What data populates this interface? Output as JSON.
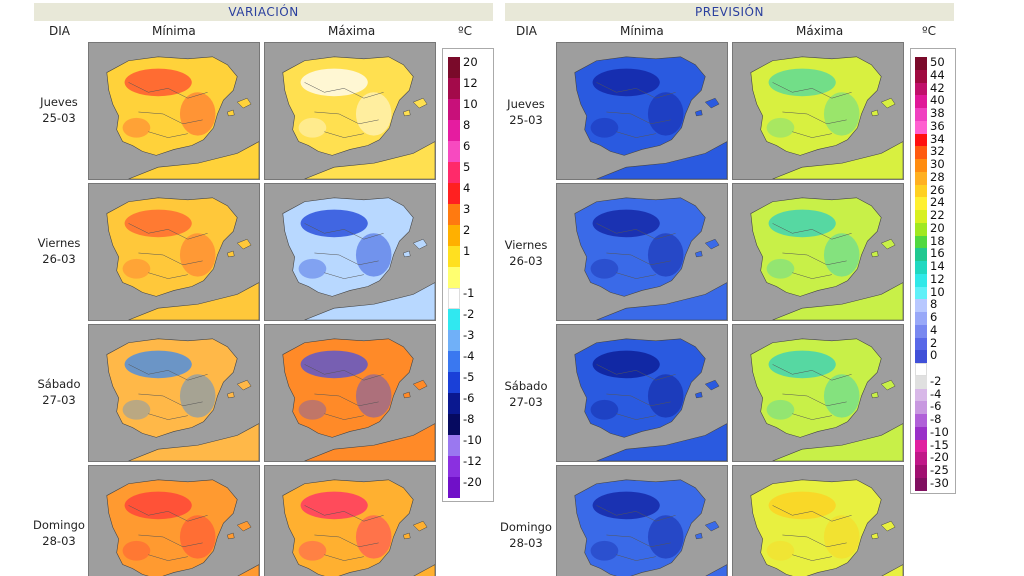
{
  "left_panel": {
    "title": "VARIACIÓN",
    "dia_label": "DIA",
    "col_min": "Mínima",
    "col_max": "Máxima",
    "unit": "ºC",
    "legend": [
      {
        "label": "20",
        "color": "#7a0a2a"
      },
      {
        "label": "12",
        "color": "#a30a4a"
      },
      {
        "label": "10",
        "color": "#c8107a"
      },
      {
        "label": "8",
        "color": "#e51ca0"
      },
      {
        "label": "6",
        "color": "#f74ac0"
      },
      {
        "label": "5",
        "color": "#ff2a6a"
      },
      {
        "label": "4",
        "color": "#ff2020"
      },
      {
        "label": "3",
        "color": "#ff7a10"
      },
      {
        "label": "2",
        "color": "#ffb000"
      },
      {
        "label": "1",
        "color": "#ffe020"
      },
      {
        "label": "",
        "color": "#ffff70"
      },
      {
        "label": "-1",
        "color": "#ffffff"
      },
      {
        "label": "-2",
        "color": "#30e8f0"
      },
      {
        "label": "-3",
        "color": "#70b0f8"
      },
      {
        "label": "-4",
        "color": "#3a78f0"
      },
      {
        "label": "-5",
        "color": "#1a40d8"
      },
      {
        "label": "-6",
        "color": "#0a1890"
      },
      {
        "label": "-8",
        "color": "#060a60"
      },
      {
        "label": "-10",
        "color": "#9a78f0"
      },
      {
        "label": "-12",
        "color": "#8a30e0"
      },
      {
        "label": "-20",
        "color": "#7010c8"
      }
    ]
  },
  "right_panel": {
    "title": "PREVISIÓN",
    "dia_label": "DIA",
    "col_min": "Mínima",
    "col_max": "Máxima",
    "unit": "ºC",
    "legend": [
      {
        "label": "50",
        "color": "#7a0a2a"
      },
      {
        "label": "44",
        "color": "#a00a40"
      },
      {
        "label": "42",
        "color": "#c0106a"
      },
      {
        "label": "40",
        "color": "#e01898"
      },
      {
        "label": "38",
        "color": "#f040c0"
      },
      {
        "label": "36",
        "color": "#ff60d0"
      },
      {
        "label": "34",
        "color": "#ff1010"
      },
      {
        "label": "32",
        "color": "#ff5a10"
      },
      {
        "label": "30",
        "color": "#ff8c10"
      },
      {
        "label": "28",
        "color": "#ffb020"
      },
      {
        "label": "26",
        "color": "#ffd020"
      },
      {
        "label": "24",
        "color": "#fff030"
      },
      {
        "label": "22",
        "color": "#d8f020"
      },
      {
        "label": "20",
        "color": "#a0e820"
      },
      {
        "label": "18",
        "color": "#50d840"
      },
      {
        "label": "16",
        "color": "#20c890"
      },
      {
        "label": "14",
        "color": "#20d8c0"
      },
      {
        "label": "12",
        "color": "#30e8e8"
      },
      {
        "label": "10",
        "color": "#60f0f8"
      },
      {
        "label": "8",
        "color": "#b8c8ff"
      },
      {
        "label": "6",
        "color": "#98a8f8"
      },
      {
        "label": "4",
        "color": "#7888f0"
      },
      {
        "label": "2",
        "color": "#5868e8"
      },
      {
        "label": "0",
        "color": "#4050d8"
      },
      {
        "label": "",
        "color": "#ffffff"
      },
      {
        "label": "-2",
        "color": "#e0e0e0"
      },
      {
        "label": "-4",
        "color": "#d8b8e8"
      },
      {
        "label": "-6",
        "color": "#c898e0"
      },
      {
        "label": "-8",
        "color": "#b060d8"
      },
      {
        "label": "-10",
        "color": "#9a30c8"
      },
      {
        "label": "-15",
        "color": "#e020a0"
      },
      {
        "label": "-20",
        "color": "#c01888"
      },
      {
        "label": "-25",
        "color": "#a01070"
      },
      {
        "label": "-30",
        "color": "#801060"
      }
    ]
  },
  "days": [
    {
      "name": "Jueves",
      "date": "25-03"
    },
    {
      "name": "Viernes",
      "date": "26-03"
    },
    {
      "name": "Sábado",
      "date": "27-03"
    },
    {
      "name": "Domingo",
      "date": "28-03"
    }
  ],
  "map_fills": {
    "var_min": [
      "#ffd23a",
      "#ffc83a",
      "#ffb848",
      "#ff9a30"
    ],
    "var_max": [
      "#ffe050",
      "#b8d8ff",
      "#ff8a28",
      "#ffb030"
    ],
    "prev_min": [
      "#2a5ae0",
      "#3a6ae8",
      "#2a5ae0",
      "#3a6ae8"
    ],
    "prev_max": [
      "#d8f040",
      "#c8f048",
      "#c8f048",
      "#e8f040"
    ]
  },
  "map_accents": {
    "var_min": [
      "#ff4a30",
      "#ff6030",
      "#3a8af0",
      "#ff3a3a"
    ],
    "var_max": [
      "#ffffff",
      "#1a40d8",
      "#4a50e0",
      "#ff2a6a"
    ],
    "prev_min": [
      "#1020a0",
      "#1020a0",
      "#0a1890",
      "#1020a0"
    ],
    "prev_max": [
      "#50d8a0",
      "#30d0c0",
      "#30d0c0",
      "#ffd020"
    ]
  }
}
